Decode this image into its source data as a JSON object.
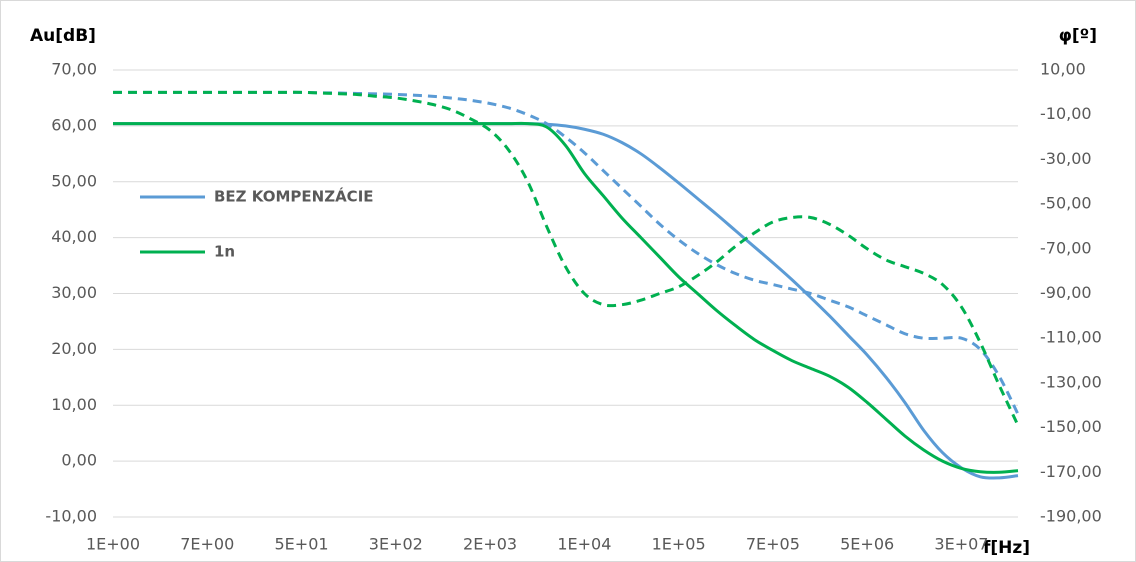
{
  "chart_data": {
    "type": "line",
    "ylabel": "Au[dB]",
    "y2label": "φ[º]",
    "xlabel": "f[Hz]",
    "categories": [
      "1E+00",
      null,
      null,
      null,
      null,
      "7E+00",
      null,
      null,
      null,
      null,
      "5E+01",
      null,
      null,
      null,
      null,
      "3E+02",
      null,
      null,
      null,
      null,
      "2E+03",
      null,
      null,
      null,
      null,
      "1E+04",
      null,
      null,
      null,
      null,
      "1E+05",
      null,
      null,
      null,
      null,
      "7E+05",
      null,
      null,
      null,
      null,
      "5E+06",
      null,
      null,
      null,
      null,
      "3E+07",
      null,
      null,
      null
    ],
    "series": [
      {
        "name": "BEZ KOMPENZÁCIE",
        "color": "#5b9bd5",
        "dashed": false,
        "values": [
          60.4,
          60.4,
          60.4,
          60.4,
          60.4,
          60.4,
          60.4,
          60.4,
          60.4,
          60.4,
          60.4,
          60.4,
          60.4,
          60.4,
          60.4,
          60.4,
          60.4,
          60.4,
          60.4,
          60.4,
          60.4,
          60.4,
          60.4,
          60.3,
          60.0,
          59.4,
          58.5,
          57.0,
          55.0,
          52.5,
          49.8,
          47.0,
          44.2,
          41.3,
          38.4,
          35.5,
          32.5,
          29.3,
          26.0,
          22.5,
          19.0,
          15.0,
          10.5,
          5.5,
          1.5,
          -1.2,
          -2.8,
          -3.0,
          -2.6
        ]
      },
      {
        "name": "1n",
        "color": "#00b050",
        "dashed": false,
        "values": [
          60.4,
          60.4,
          60.4,
          60.4,
          60.4,
          60.4,
          60.4,
          60.4,
          60.4,
          60.4,
          60.4,
          60.4,
          60.4,
          60.4,
          60.4,
          60.4,
          60.4,
          60.4,
          60.4,
          60.4,
          60.4,
          60.4,
          60.4,
          59.8,
          56.5,
          51.5,
          47.5,
          43.5,
          40.0,
          36.5,
          33.0,
          30.0,
          27.0,
          24.3,
          21.8,
          19.8,
          18.0,
          16.6,
          15.2,
          13.2,
          10.5,
          7.5,
          4.5,
          2.0,
          0.0,
          -1.3,
          -1.9,
          -2.0,
          -1.7
        ]
      },
      {
        "color": "#5b9bd5",
        "dashed": true,
        "axis": "y2",
        "values": [
          0,
          0,
          0,
          0,
          0,
          0,
          0,
          0,
          0,
          0,
          0,
          -0.2,
          -0.3,
          -0.5,
          -0.7,
          -0.9,
          -1.3,
          -1.8,
          -2.6,
          -3.6,
          -5,
          -7,
          -10,
          -14,
          -20,
          -27,
          -35,
          -43,
          -51,
          -59,
          -66,
          -72,
          -77,
          -81,
          -84,
          -86,
          -88,
          -90,
          -93,
          -96,
          -100,
          -104,
          -108,
          -110,
          -110,
          -110,
          -115,
          -127,
          -144
        ]
      },
      {
        "color": "#00b050",
        "dashed": true,
        "axis": "y2",
        "values": [
          0,
          0,
          0,
          0,
          0,
          0,
          0,
          0,
          0,
          0,
          0,
          -0.3,
          -0.6,
          -1.0,
          -1.8,
          -2.5,
          -3.8,
          -5.5,
          -8,
          -12,
          -17,
          -26,
          -40,
          -60,
          -78,
          -90,
          -95,
          -95,
          -93,
          -90,
          -87,
          -82,
          -76,
          -69,
          -63,
          -58,
          -56,
          -56,
          -59,
          -64,
          -70,
          -75,
          -78,
          -81,
          -86,
          -96,
          -112,
          -131,
          -149
        ]
      }
    ],
    "ylim": [
      -10,
      70
    ],
    "yticks": [
      {
        "value": -10,
        "label": "-10,00"
      },
      {
        "value": 0,
        "label": "0,00"
      },
      {
        "value": 10,
        "label": "10,00"
      },
      {
        "value": 20,
        "label": "20,00"
      },
      {
        "value": 30,
        "label": "30,00"
      },
      {
        "value": 40,
        "label": "40,00"
      },
      {
        "value": 50,
        "label": "50,00"
      },
      {
        "value": 60,
        "label": "60,00"
      },
      {
        "value": 70,
        "label": "70,00"
      }
    ],
    "y2lim": [
      -190,
      10
    ],
    "y2ticks": [
      {
        "value": -190,
        "label": "-190,00"
      },
      {
        "value": -170,
        "label": "-170,00"
      },
      {
        "value": -150,
        "label": "-150,00"
      },
      {
        "value": -130,
        "label": "-130,00"
      },
      {
        "value": -110,
        "label": "-110,00"
      },
      {
        "value": -90,
        "label": "-90,00"
      },
      {
        "value": -70,
        "label": "-70,00"
      },
      {
        "value": -50,
        "label": "-50,00"
      },
      {
        "value": -30,
        "label": "-30,00"
      },
      {
        "value": -10,
        "label": "-10,00"
      },
      {
        "value": 10,
        "label": "10,00"
      }
    ],
    "grid": true,
    "legend": "left"
  }
}
